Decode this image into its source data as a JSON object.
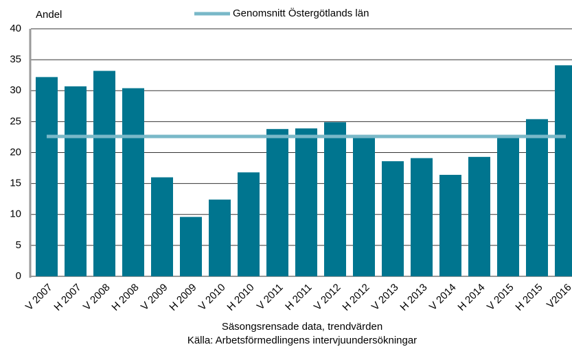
{
  "chart_data": {
    "type": "bar",
    "ylabel": "Andel",
    "xlabel": "Säsongsrensade data, trendvärden",
    "source": "Källa: Arbetsförmedlingens intervjuundersökningar",
    "categories": [
      "V 2007",
      "H 2007",
      "V 2008",
      "H 2008",
      "V 2009",
      "H 2009",
      "V 2010",
      "H 2010",
      "V 2011",
      "H 2011",
      "V 2012",
      "H 2012",
      "V 2013",
      "H 2013",
      "V 2014",
      "H 2014",
      "V 2015",
      "H 2015",
      "V2016"
    ],
    "series": [
      {
        "type": "bar",
        "color": "#00758f",
        "values": [
          32.2,
          30.7,
          33.2,
          30.4,
          16.0,
          9.6,
          12.4,
          16.8,
          23.8,
          23.9,
          24.9,
          22.6,
          18.6,
          19.1,
          16.4,
          19.3,
          22.8,
          25.4,
          34.1
        ]
      },
      {
        "type": "line",
        "name": "Genomsnitt Östergötlands län",
        "color": "#79b8c8",
        "values": [
          22.6,
          22.6,
          22.6,
          22.6,
          22.6,
          22.6,
          22.6,
          22.6,
          22.6,
          22.6,
          22.6,
          22.6,
          22.6,
          22.6,
          22.6,
          22.6,
          22.6,
          22.6,
          22.6
        ]
      }
    ],
    "ylim": [
      0,
      40
    ],
    "yticks": [
      0,
      5,
      10,
      15,
      20,
      25,
      30,
      35,
      40
    ],
    "grid": true,
    "legend": "top"
  }
}
